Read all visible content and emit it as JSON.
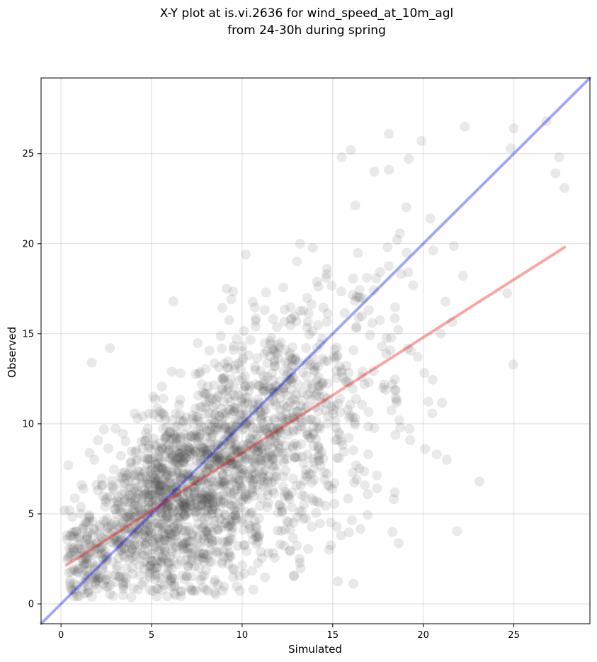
{
  "chart_data": {
    "type": "scatter",
    "title": [
      "X-Y plot at is.vi.2636 for wind_speed_at_10m_agl",
      "from 24-30h during spring"
    ],
    "xlabel": "Simulated",
    "ylabel": "Observed",
    "xlim": [
      -1.1,
      29.2
    ],
    "ylim": [
      -1.1,
      29.2
    ],
    "xticks": [
      0,
      5,
      10,
      15,
      20,
      25
    ],
    "yticks": [
      0,
      5,
      10,
      15,
      20,
      25
    ],
    "grid": true,
    "points": {
      "count": 2200,
      "color": "#4d4d4d",
      "alpha": 0.12,
      "distribution": {
        "x_min": 0.3,
        "x_max": 27.8,
        "x_mode": 7,
        "slope": 0.65,
        "intercept": 1.95,
        "resid_sd": 3.0
      },
      "notable": [
        [
          26.8,
          26.8
        ],
        [
          27.5,
          24.8
        ],
        [
          27.3,
          23.9
        ],
        [
          27.8,
          23.1
        ],
        [
          25.0,
          26.4
        ],
        [
          22.3,
          26.5
        ],
        [
          18.1,
          26.1
        ],
        [
          23.1,
          6.8
        ],
        [
          0.4,
          7.7
        ],
        [
          1.7,
          13.4
        ],
        [
          2.7,
          14.2
        ],
        [
          6.2,
          16.8
        ],
        [
          10.2,
          19.4
        ],
        [
          13.2,
          20.0
        ],
        [
          16.0,
          25.2
        ],
        [
          15.5,
          24.8
        ],
        [
          18.1,
          24.1
        ],
        [
          19.9,
          25.7
        ],
        [
          0.2,
          5.2
        ],
        [
          1.7,
          0.4
        ],
        [
          21.3,
          8.0
        ],
        [
          20.1,
          8.6
        ],
        [
          18.3,
          4.0
        ],
        [
          14.8,
          3.0
        ]
      ]
    },
    "lines": [
      {
        "name": "",
        "color": "#0000ee",
        "alpha": 0.35,
        "x": [
          -1.1,
          29.2
        ],
        "y": [
          -1.1,
          29.2
        ]
      },
      {
        "name": "",
        "color": "#ee0000",
        "alpha": 0.35,
        "x": [
          0.3,
          27.8
        ],
        "y": [
          2.15,
          19.8
        ]
      }
    ]
  }
}
